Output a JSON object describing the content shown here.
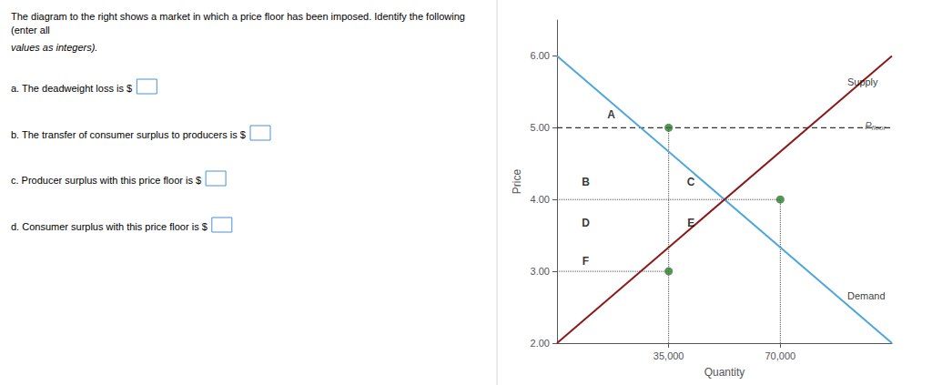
{
  "chart_data": {
    "type": "line",
    "text_lines": [
      "The diagram to the right shows a market in which a price floor has been imposed. Identify the following (enter all",
      "values as integers).",
      "a. The deadweight loss is $",
      "b. The transfer of consumer surplus to producers is $",
      "c. Producer surplus with this price floor is $",
      "d. Consumer surplus with this price floor is $"
    ],
    "xlabel": "Quantity",
    "ylabel": "Price",
    "xlim": [
      0,
      105000
    ],
    "ylim": [
      2.0,
      6.5
    ],
    "xticks": [
      {
        "value": 35000,
        "label": "35,000"
      },
      {
        "value": 70000,
        "label": "70,000"
      }
    ],
    "yticks": [
      {
        "value": 2.0,
        "label": "2.00"
      },
      {
        "value": 3.0,
        "label": "3.00"
      },
      {
        "value": 4.0,
        "label": "4.00"
      },
      {
        "value": 5.0,
        "label": "5.00"
      },
      {
        "value": 6.0,
        "label": "6.00"
      }
    ],
    "grid": false,
    "series": [
      {
        "type": "line",
        "color": "#4da6d9",
        "line_style": "solid",
        "x": [
          0,
          105000
        ],
        "values": [
          6.0,
          2.0
        ]
      },
      {
        "type": "line",
        "color": "#8b1a1a",
        "line_style": "solid",
        "x": [
          0,
          105000
        ],
        "values": [
          2.0,
          6.0
        ]
      },
      {
        "type": "line",
        "color": "#333333",
        "line_style": "dashed",
        "x": [
          0,
          105000
        ],
        "values": [
          5.0,
          5.0
        ]
      },
      {
        "type": "line",
        "color": "#555555",
        "line_style": "dotted",
        "x": [
          35000,
          35000
        ],
        "values": [
          2.0,
          5.0
        ]
      },
      {
        "type": "line",
        "color": "#555555",
        "line_style": "dotted",
        "x": [
          70000,
          70000
        ],
        "values": [
          2.0,
          4.0
        ]
      },
      {
        "type": "line",
        "color": "#555555",
        "line_style": "dotted",
        "x": [
          0,
          70000
        ],
        "values": [
          4.0,
          4.0
        ]
      },
      {
        "type": "line",
        "color": "#555555",
        "line_style": "dotted",
        "x": [
          0,
          35000
        ],
        "values": [
          3.0,
          3.0
        ]
      },
      {
        "type": "scatter",
        "color": "#2d7a2d",
        "marker": "circle",
        "x": [
          35000,
          35000,
          70000
        ],
        "values": [
          5.0,
          3.0,
          4.0
        ]
      }
    ],
    "region_labels": [
      {
        "text": "A",
        "x": 17000,
        "y": 5.1
      },
      {
        "text": "B",
        "x": 9000,
        "y": 4.17
      },
      {
        "text": "C",
        "x": 42000,
        "y": 4.17
      },
      {
        "text": "D",
        "x": 9000,
        "y": 3.6
      },
      {
        "text": "E",
        "x": 42000,
        "y": 3.6
      },
      {
        "text": "F",
        "x": 9000,
        "y": 3.07
      }
    ],
    "annotations": [
      {
        "text": "Supply",
        "x": 91000,
        "y": 5.55
      },
      {
        "text": "Demand",
        "x": 91000,
        "y": 2.58
      },
      {
        "text": "P",
        "subscript": "floor",
        "x": 96500,
        "y": 5.03,
        "color": "#333333"
      }
    ]
  }
}
